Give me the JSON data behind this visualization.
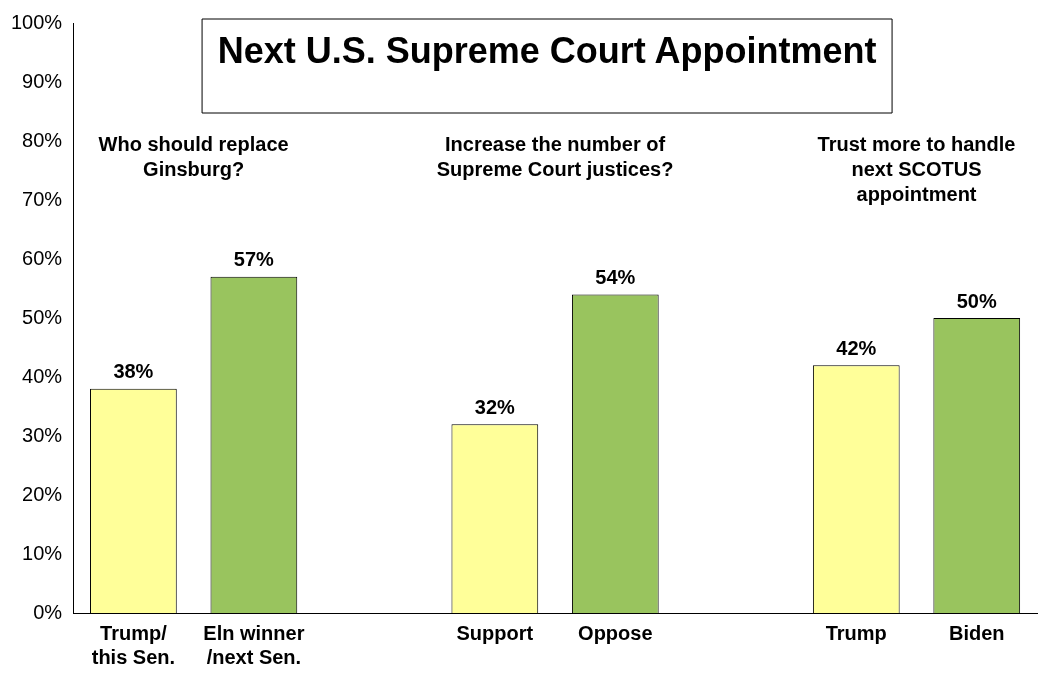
{
  "chart_data": {
    "type": "bar",
    "title": "Next U.S. Supreme Court Appointment",
    "categories": [
      "Trump/\nthis Sen.",
      "Eln winner\n/next Sen.",
      null,
      "Support",
      "Oppose",
      null,
      "Trump",
      "Biden"
    ],
    "values": [
      38,
      57,
      null,
      32,
      54,
      null,
      42,
      50
    ],
    "colors": [
      "#ffff99",
      "#99c45e",
      null,
      "#ffff99",
      "#99c45e",
      null,
      "#ffff99",
      "#99c45e"
    ],
    "value_labels": [
      "38%",
      "57%",
      null,
      "32%",
      "54%",
      null,
      "42%",
      "50%"
    ],
    "ylim": [
      0,
      100
    ],
    "yticks": [
      {
        "value": 0,
        "label": "0%"
      },
      {
        "value": 10,
        "label": "10%"
      },
      {
        "value": 20,
        "label": "20%"
      },
      {
        "value": 30,
        "label": "30%"
      },
      {
        "value": 40,
        "label": "40%"
      },
      {
        "value": 50,
        "label": "50%"
      },
      {
        "value": 60,
        "label": "60%"
      },
      {
        "value": 70,
        "label": "70%"
      },
      {
        "value": 80,
        "label": "80%"
      },
      {
        "value": 90,
        "label": "90%"
      },
      {
        "value": 100,
        "label": "100%"
      }
    ],
    "annotations": [
      "Who should replace\nGinsburg?",
      "Increase the number of\nSupreme Court justices?",
      "Trust more to handle\nnext SCOTUS\nappointment"
    ],
    "grid": false,
    "legend": false
  }
}
